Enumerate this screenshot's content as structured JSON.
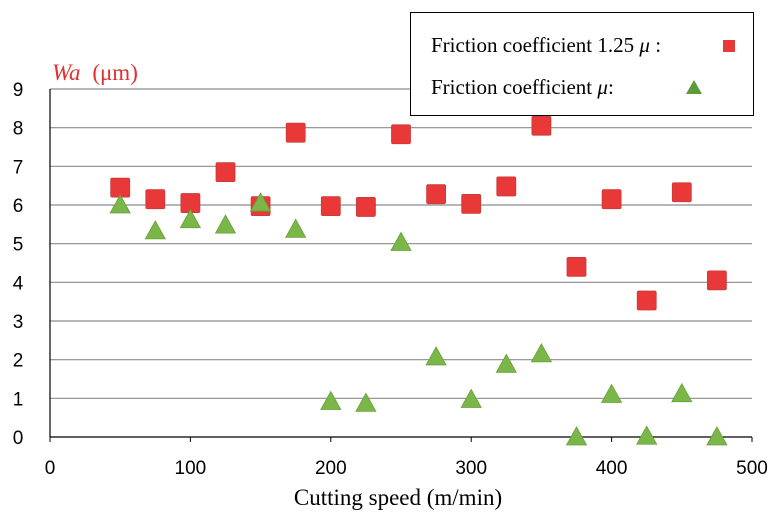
{
  "colors": {
    "series1": "#e83838",
    "series2": "#7ab648",
    "ylabel": "#e03030",
    "grid": "#8c8c8c"
  },
  "chart_data": {
    "type": "scatter",
    "ylabel": "Wa (μm)",
    "ylabel_italic_part": "Wa",
    "ylabel_unit": "(μm)",
    "xlabel": "Cutting speed (m/min)",
    "xlim": [
      0,
      500
    ],
    "ylim": [
      0,
      9
    ],
    "xticks": [
      0,
      100,
      200,
      300,
      400,
      500
    ],
    "yticks": [
      0,
      1,
      2,
      3,
      4,
      5,
      6,
      7,
      8,
      9
    ],
    "grid": "horizontal",
    "legend_position": "top-right",
    "series": [
      {
        "name": "Friction coefficient 1.25 μ :",
        "legend_prefix": "Friction coefficient 1.25 ",
        "legend_mu": "μ",
        "legend_suffix": " :",
        "marker": "square",
        "x": [
          50,
          75,
          100,
          125,
          150,
          175,
          200,
          225,
          250,
          275,
          300,
          325,
          350,
          375,
          400,
          425,
          450,
          475
        ],
        "y": [
          6.45,
          6.15,
          6.05,
          6.85,
          5.97,
          7.87,
          5.97,
          5.95,
          7.83,
          6.28,
          6.03,
          6.48,
          8.05,
          4.4,
          6.15,
          3.53,
          6.33,
          4.05
        ]
      },
      {
        "name": "Friction coefficient μ:",
        "legend_prefix": "Friction coefficient ",
        "legend_mu": "μ",
        "legend_suffix": ":",
        "marker": "triangle",
        "x": [
          50,
          75,
          100,
          125,
          150,
          175,
          200,
          225,
          250,
          275,
          300,
          325,
          350,
          375,
          400,
          425,
          450,
          475
        ],
        "y": [
          6.0,
          5.33,
          5.62,
          5.48,
          6.05,
          5.37,
          0.92,
          0.87,
          5.03,
          2.07,
          0.97,
          1.88,
          2.15,
          0.0,
          1.1,
          0.02,
          1.12,
          0.0
        ]
      }
    ]
  }
}
